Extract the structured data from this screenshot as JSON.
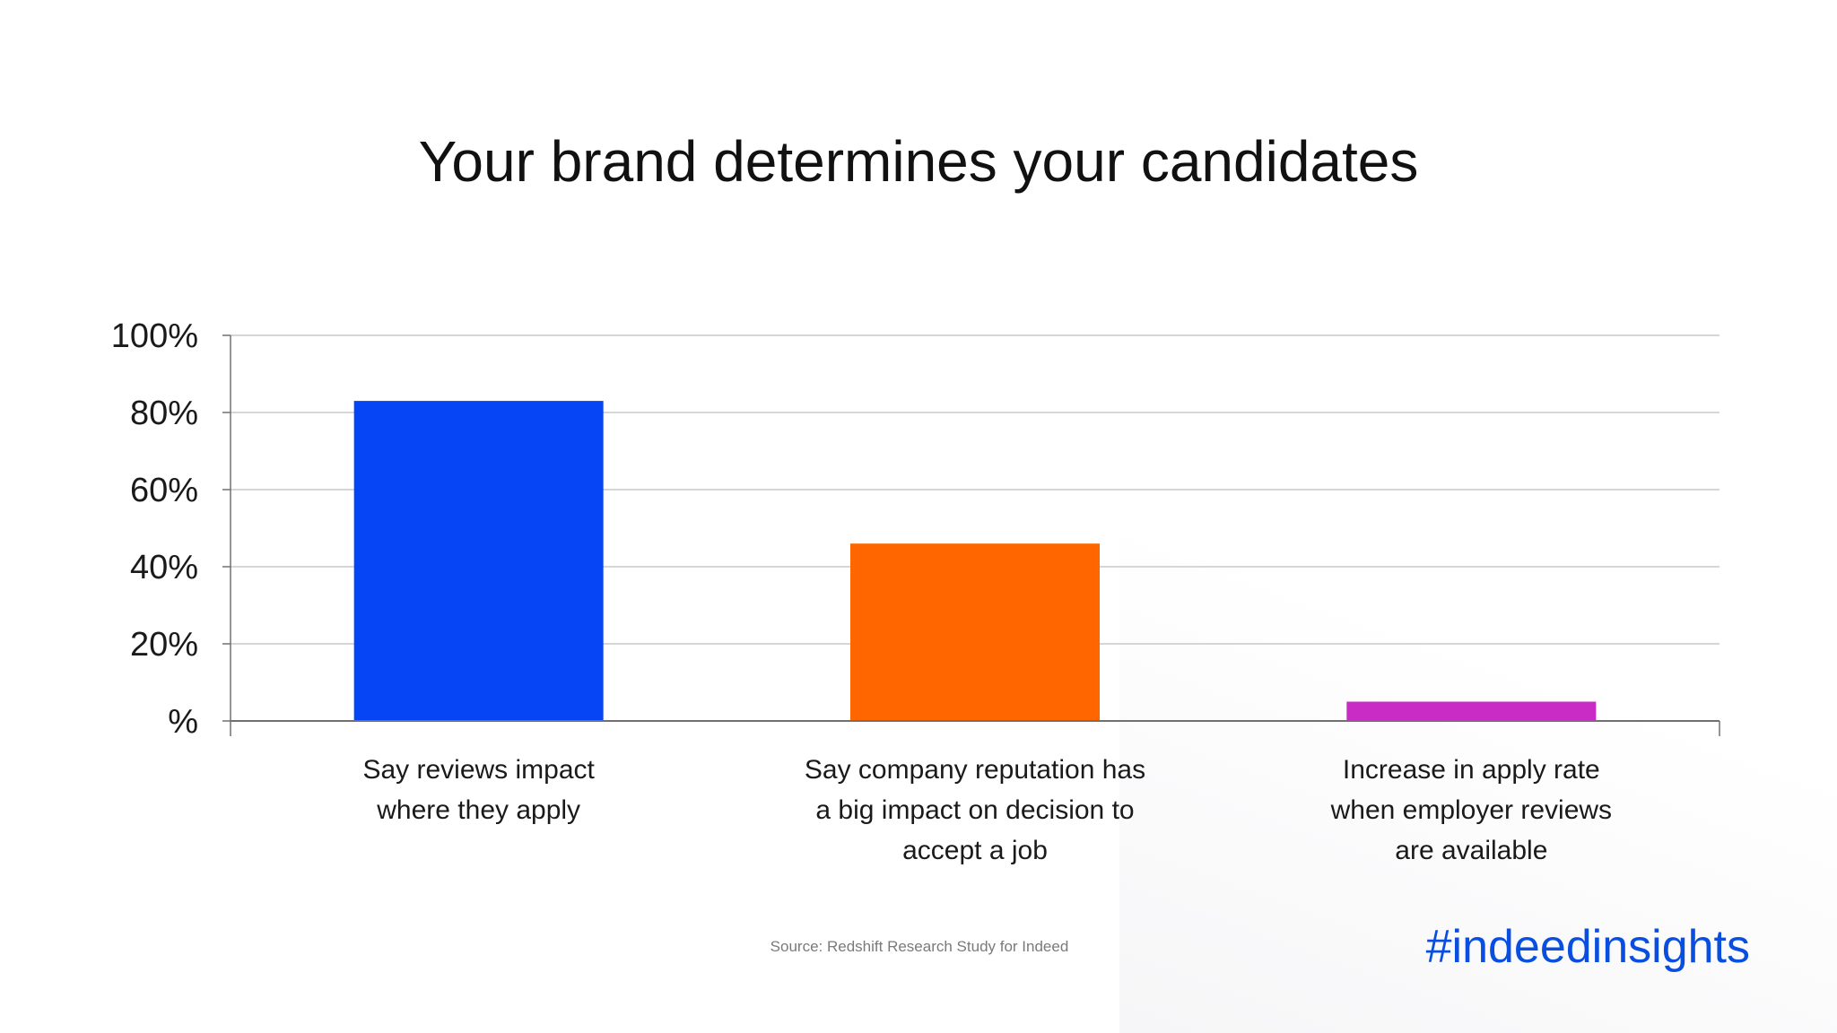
{
  "chart_data": {
    "type": "bar",
    "title": "Your brand determines your candidates",
    "categories": [
      [
        "Say reviews impact",
        "where they apply"
      ],
      [
        "Say company reputation has",
        "a big impact on decision to",
        "accept a job"
      ],
      [
        "Increase in apply rate",
        "when employer reviews",
        "are available"
      ]
    ],
    "values": [
      83,
      46,
      5
    ],
    "colors": [
      "#0645f5",
      "#ff6600",
      "#c82cc5"
    ],
    "ylim": [
      0,
      100
    ],
    "yticks": [
      0,
      20,
      40,
      60,
      80,
      100
    ],
    "ytick_labels": [
      "%",
      "20%",
      "40%",
      "60%",
      "80%",
      "100%"
    ],
    "grid": true,
    "xlabel": "",
    "ylabel": ""
  },
  "footer": {
    "source": "Source: Redshift Research Study for Indeed",
    "hashtag": "#indeedinsights",
    "hashtag_color": "#0a4ee0"
  }
}
